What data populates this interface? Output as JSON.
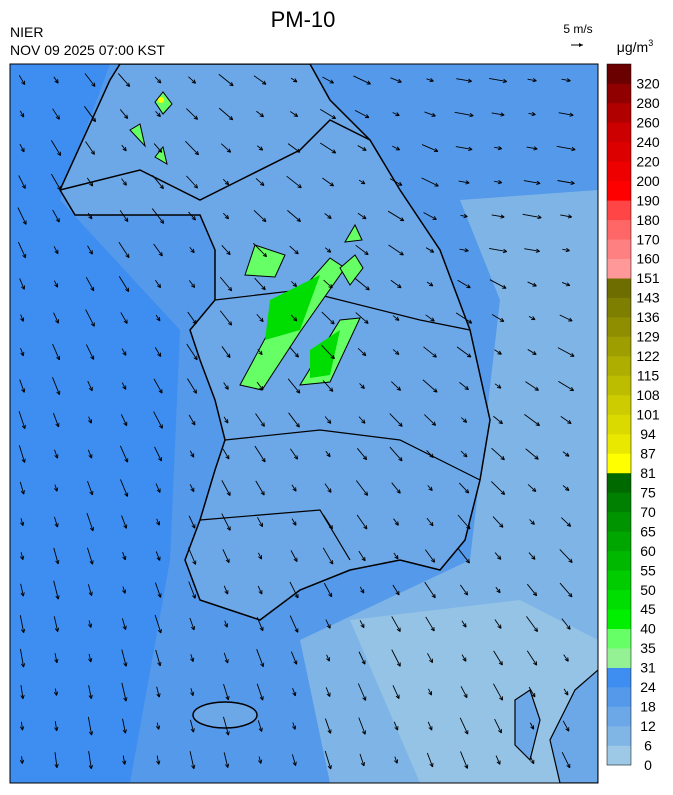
{
  "header": {
    "title": "PM-10",
    "agency": "NIER",
    "datetime": "NOV 09 2025 07:00 KST",
    "wind_scale": "5 m/s"
  },
  "colorbar": {
    "unit": "μg/m",
    "unit_sup": "3",
    "levels": [
      0,
      6,
      12,
      18,
      24,
      31,
      35,
      40,
      45,
      50,
      55,
      60,
      65,
      70,
      75,
      81,
      87,
      94,
      101,
      108,
      115,
      122,
      129,
      136,
      143,
      151,
      160,
      170,
      180,
      190,
      200,
      220,
      240,
      260,
      280,
      320
    ],
    "colors": [
      "#9dc9e6",
      "#80b6e6",
      "#6ca8e8",
      "#559aea",
      "#3d8ef0",
      "#94f294",
      "#66ff66",
      "#00f000",
      "#00dd00",
      "#00cc00",
      "#00b800",
      "#00a600",
      "#009400",
      "#008000",
      "#006a00",
      "#ffff00",
      "#e8e800",
      "#dada00",
      "#cccc00",
      "#bdbd00",
      "#aeae00",
      "#9e9e00",
      "#8e8e00",
      "#7e7e00",
      "#6e6e00",
      "#ff9999",
      "#ff8080",
      "#ff6666",
      "#ff4545",
      "#ff0000",
      "#ee0000",
      "#dd0000",
      "#cc0000",
      "#b00000",
      "#900000",
      "#6a0000"
    ]
  }
}
